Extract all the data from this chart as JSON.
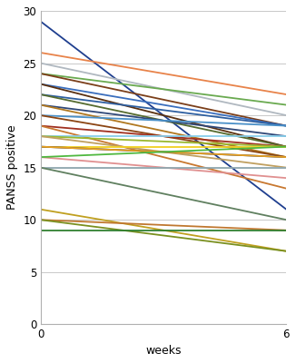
{
  "lines": [
    {
      "start": 29,
      "end": 11,
      "color": "#1f3f8f"
    },
    {
      "start": 26,
      "end": 22,
      "color": "#e8834a"
    },
    {
      "start": 25,
      "end": 20,
      "color": "#b0b8c0"
    },
    {
      "start": 24,
      "end": 21,
      "color": "#6aaa50"
    },
    {
      "start": 24,
      "end": 19,
      "color": "#7b3f1a"
    },
    {
      "start": 23,
      "end": 19,
      "color": "#3a6ebd"
    },
    {
      "start": 23,
      "end": 17,
      "color": "#5a3010"
    },
    {
      "start": 22,
      "end": 19,
      "color": "#2e5fa0"
    },
    {
      "start": 22,
      "end": 17,
      "color": "#556b2f"
    },
    {
      "start": 21,
      "end": 18,
      "color": "#304878"
    },
    {
      "start": 21,
      "end": 16,
      "color": "#b07820"
    },
    {
      "start": 20,
      "end": 19,
      "color": "#4a90c8"
    },
    {
      "start": 20,
      "end": 16,
      "color": "#8b4513"
    },
    {
      "start": 19,
      "end": 17,
      "color": "#a03020"
    },
    {
      "start": 19,
      "end": 13,
      "color": "#c87830"
    },
    {
      "start": 18,
      "end": 18,
      "color": "#87ceeb"
    },
    {
      "start": 18,
      "end": 17,
      "color": "#9ab830"
    },
    {
      "start": 18,
      "end": 15,
      "color": "#c0a060"
    },
    {
      "start": 17,
      "end": 17,
      "color": "#f0d020"
    },
    {
      "start": 17,
      "end": 16,
      "color": "#183060"
    },
    {
      "start": 17,
      "end": 16,
      "color": "#e8a020"
    },
    {
      "start": 16,
      "end": 14,
      "color": "#e09090"
    },
    {
      "start": 16,
      "end": 17,
      "color": "#50b840"
    },
    {
      "start": 15,
      "end": 15,
      "color": "#90a8b0"
    },
    {
      "start": 15,
      "end": 10,
      "color": "#608060"
    },
    {
      "start": 11,
      "end": 7,
      "color": "#c0a020"
    },
    {
      "start": 10,
      "end": 9,
      "color": "#c07830"
    },
    {
      "start": 10,
      "end": 7,
      "color": "#7a9020"
    },
    {
      "start": 9,
      "end": 9,
      "color": "#308030"
    }
  ],
  "xlim": [
    0,
    6
  ],
  "ylim": [
    0,
    30
  ],
  "yticks": [
    0,
    5,
    10,
    15,
    20,
    25,
    30
  ],
  "xticks": [
    0,
    6
  ],
  "ylabel": "PANSS positive",
  "xlabel": "weeks",
  "background_color": "#ffffff",
  "grid_color": "#c8c8c8",
  "linewidth": 1.3,
  "figsize": [
    3.26,
    4.0
  ],
  "dpi": 100
}
